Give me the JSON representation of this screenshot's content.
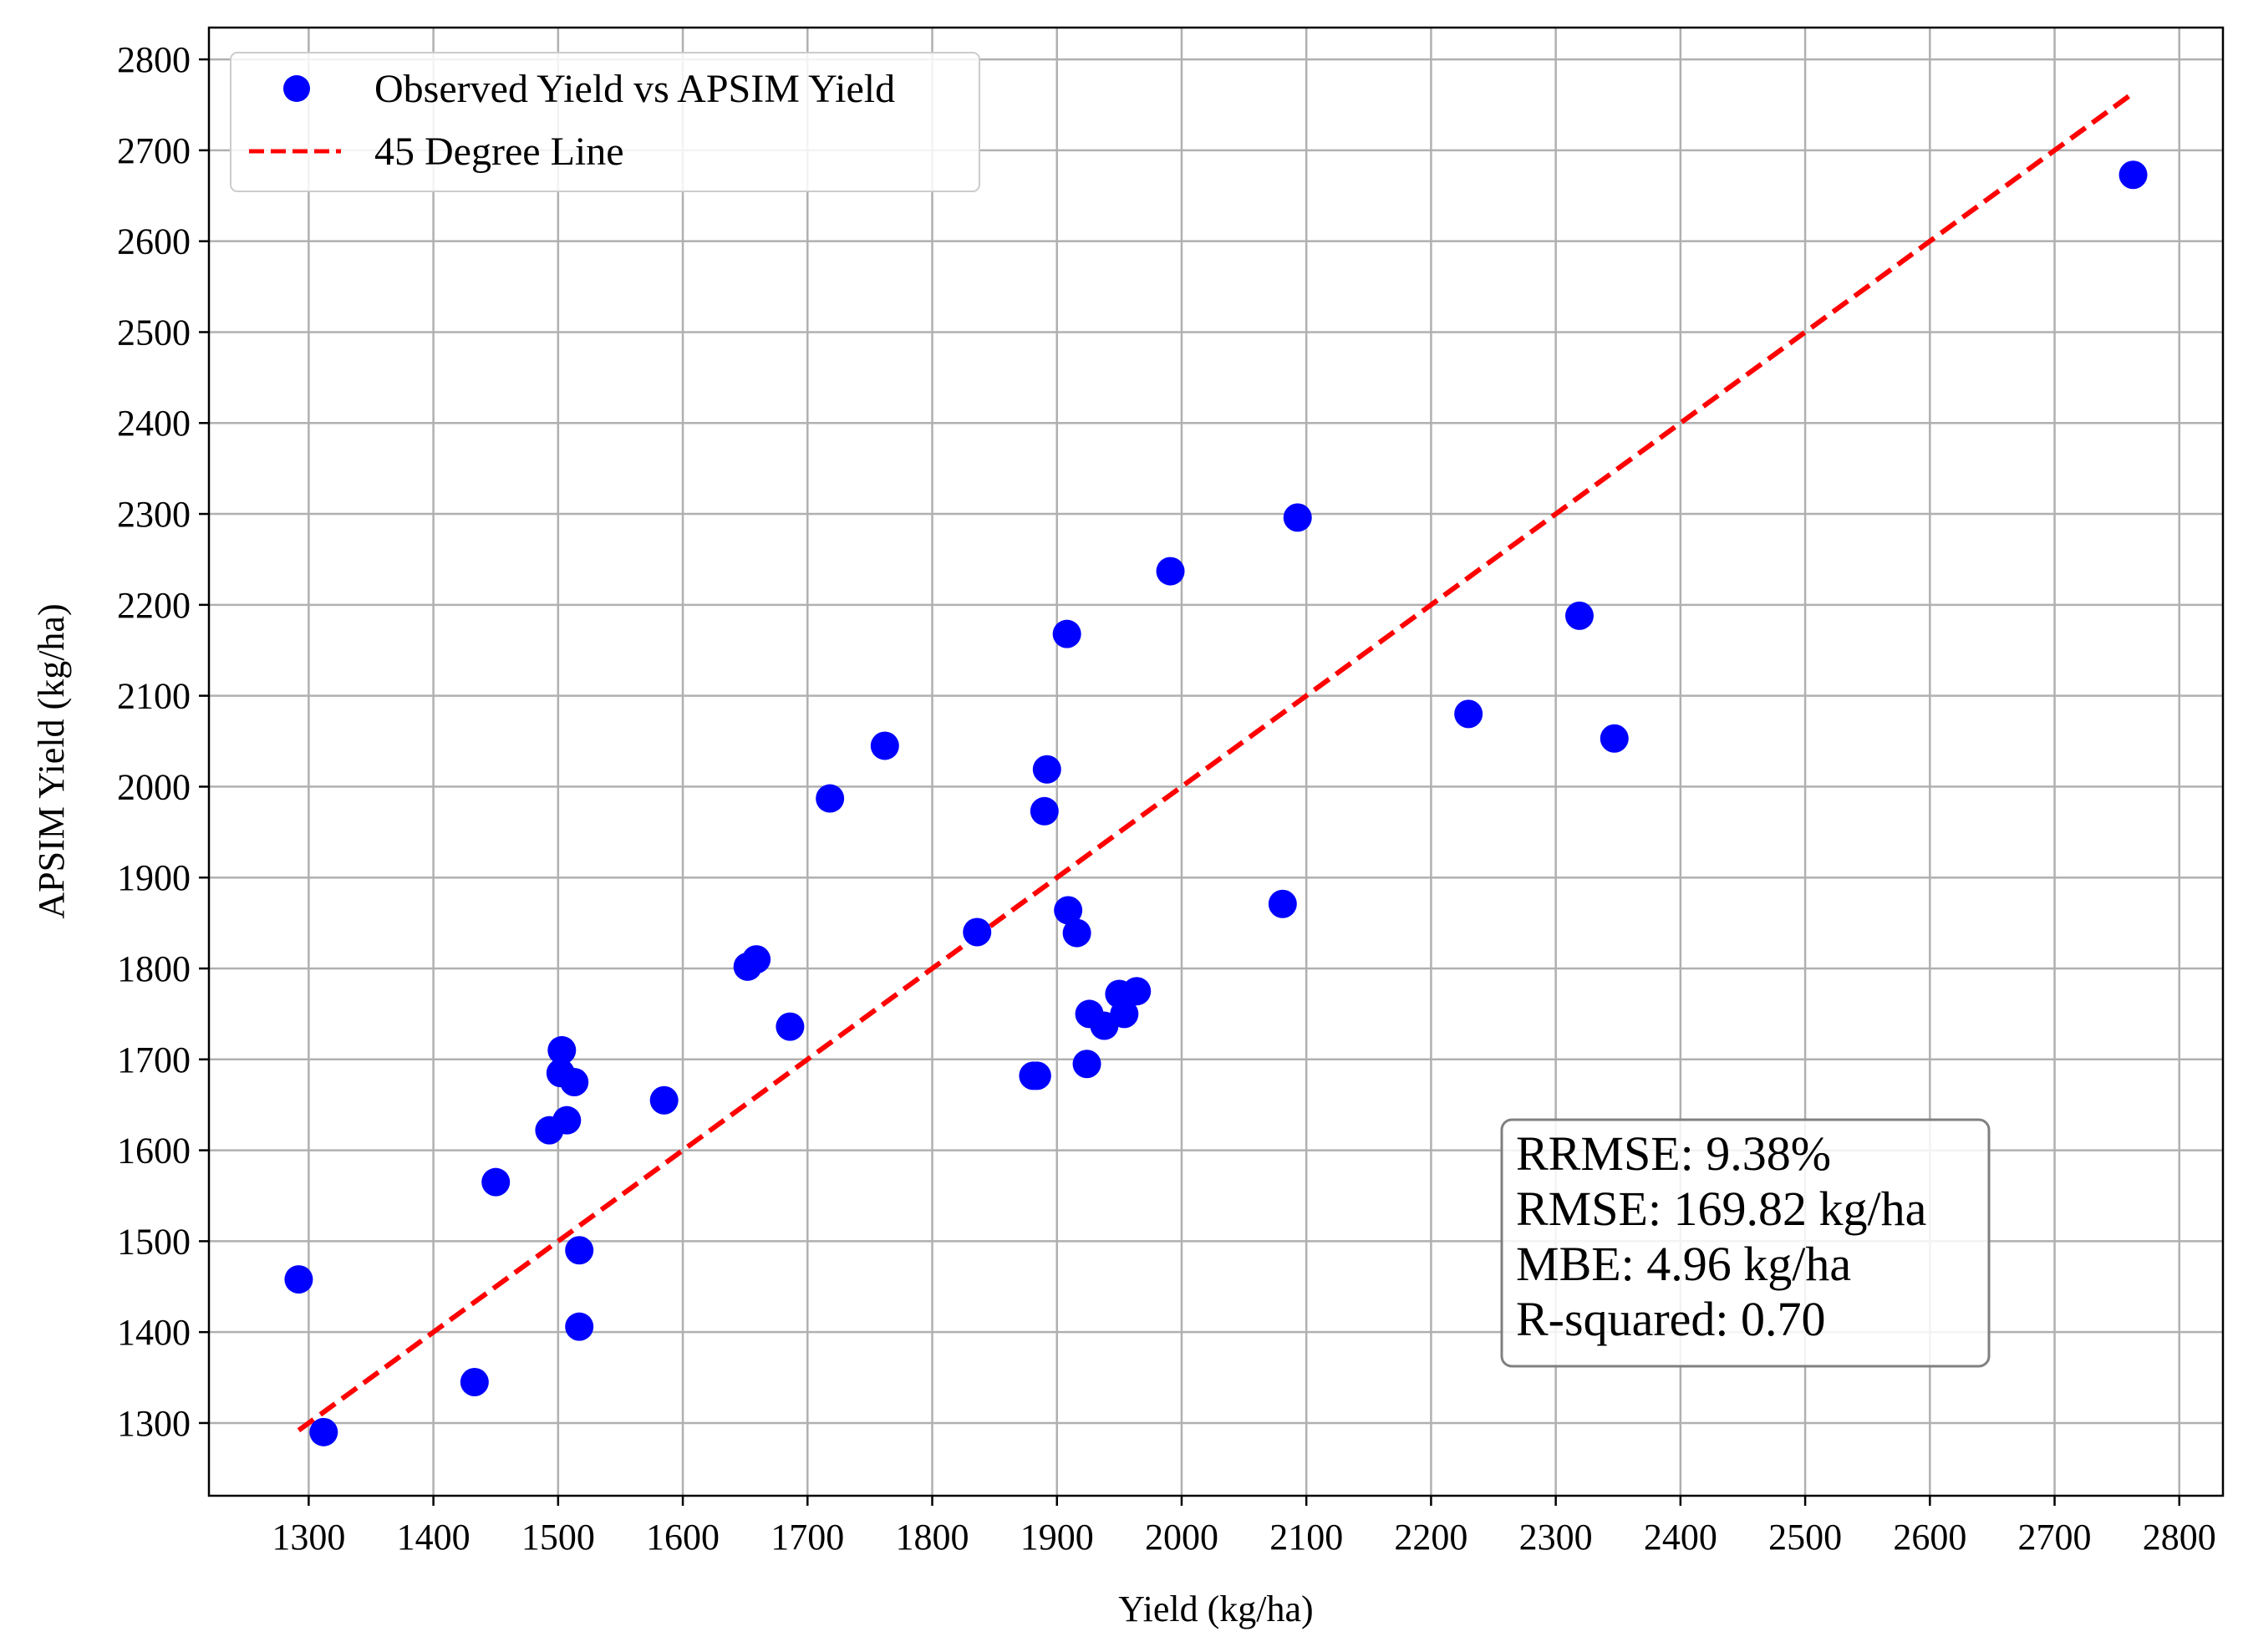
{
  "chart_data": {
    "type": "scatter",
    "title": "",
    "xlabel": "Yield (kg/ha)",
    "ylabel": "APSIM Yield (kg/ha)",
    "xlim": [
      1220,
      2835
    ],
    "ylim": [
      1220,
      2835
    ],
    "xticks": [
      1300,
      1400,
      1500,
      1600,
      1700,
      1800,
      1900,
      2000,
      2100,
      2200,
      2300,
      2400,
      2500,
      2600,
      2700,
      2800
    ],
    "yticks": [
      1300,
      1400,
      1500,
      1600,
      1700,
      1800,
      1900,
      2000,
      2100,
      2200,
      2300,
      2400,
      2500,
      2600,
      2700,
      2800
    ],
    "grid": true,
    "legend_position": "upper-left",
    "colors": {
      "points": "#0000ff",
      "line": "#ff0000",
      "grid": "#b0b0b0"
    },
    "series": [
      {
        "name": "Observed Yield vs APSIM Yield",
        "kind": "scatter",
        "x": [
          1292,
          1312,
          1433,
          1450,
          1493,
          1502,
          1503,
          1507,
          1513,
          1517,
          1517,
          1585,
          1652,
          1659,
          1686,
          1718,
          1762,
          1836,
          1881,
          1884,
          1890,
          1892,
          1908,
          1909,
          1916,
          1924,
          1926,
          1938,
          1950,
          1954,
          1964,
          1991,
          2081,
          2093,
          2230,
          2319,
          2347,
          2763
        ],
        "y": [
          1458,
          1290,
          1345,
          1565,
          1622,
          1685,
          1710,
          1633,
          1675,
          1490,
          1406,
          1655,
          1802,
          1810,
          1736,
          1987,
          2045,
          1840,
          1682,
          1682,
          1973,
          2019,
          2168,
          1864,
          1839,
          1695,
          1750,
          1737,
          1772,
          1750,
          1775,
          2237,
          1871,
          2296,
          2080,
          2188,
          2053,
          2673
        ]
      },
      {
        "name": "45 Degree Line",
        "kind": "line",
        "x": [
          1292,
          2763
        ],
        "y": [
          1292,
          2763
        ]
      }
    ],
    "annotations": [
      "RRMSE: 9.38%",
      "RMSE: 169.82 kg/ha",
      "MBE: 4.96 kg/ha",
      "R-squared: 0.70"
    ]
  }
}
